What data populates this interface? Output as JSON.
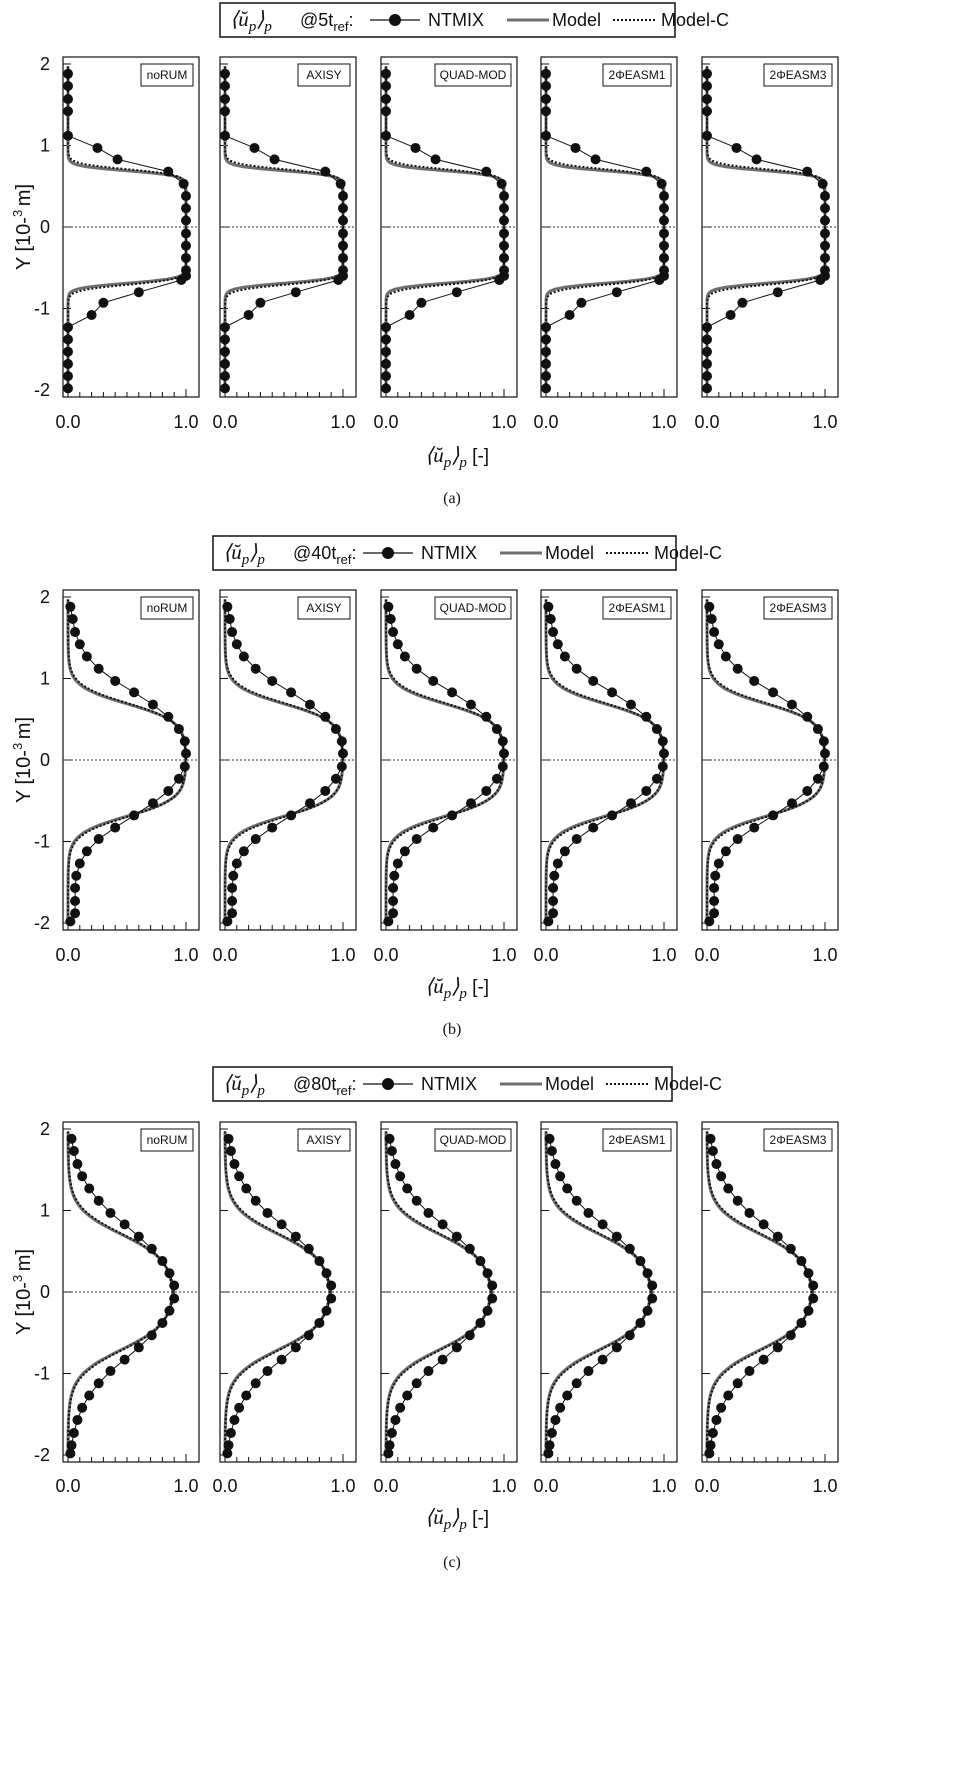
{
  "legend": {
    "quantity": "⟨ŭp⟩p",
    "times": [
      "5",
      "40",
      "80"
    ],
    "time_subscript": "ref",
    "entries": [
      "NTMIX",
      "Model",
      "Model-C"
    ]
  },
  "colors": {
    "ntmix": "#111111",
    "model": "#6e6e6e",
    "model_c": "#111111",
    "frame": "#111111"
  },
  "chart_data": [
    {
      "type": "line",
      "caption": "(a)",
      "time": "5",
      "panels": [
        "noRUM",
        "AXISY",
        "QUAD-MOD",
        "2ΦEASM1",
        "2ΦEASM3"
      ],
      "xlabel": "⟨ŭp⟩p [-]",
      "ylabel": "Y [10-3 m]",
      "xlim": [
        0,
        1
      ],
      "ylim": [
        -2,
        2
      ],
      "xticklabels": [
        "0.0",
        "1.0"
      ],
      "yticks": [
        2,
        1,
        0,
        -1,
        -2
      ],
      "reference_line_y": 0,
      "series": [
        {
          "name": "NTMIX",
          "marker": "circle",
          "x": [
            0,
            0,
            0,
            0,
            0,
            0.25,
            0.42,
            0.85,
            0.98,
            1.0,
            1.0,
            1.0,
            1.0,
            1.0,
            1.0,
            1.0,
            1.0,
            0.96,
            0.6,
            0.3,
            0.2,
            0,
            0,
            0,
            0,
            0,
            0
          ],
          "y": [
            1.88,
            1.73,
            1.57,
            1.42,
            1.12,
            0.97,
            0.83,
            0.68,
            0.53,
            0.38,
            0.23,
            0.08,
            -0.08,
            -0.23,
            -0.38,
            -0.53,
            -0.6,
            -0.65,
            -0.8,
            -0.93,
            -1.08,
            -1.23,
            -1.38,
            -1.53,
            -1.68,
            -1.83,
            -1.98
          ]
        },
        {
          "name": "Model",
          "profile": {
            "plateau": 1,
            "half_width": 0.7,
            "edge_width": 0.06
          }
        },
        {
          "name": "Model-C",
          "profile": {
            "plateau": 1,
            "half_width": 0.72,
            "edge_width": 0.07
          }
        }
      ]
    },
    {
      "type": "line",
      "caption": "(b)",
      "time": "40",
      "panels": [
        "noRUM",
        "AXISY",
        "QUAD-MOD",
        "2ΦEASM1",
        "2ΦEASM3"
      ],
      "xlabel": "⟨ŭp⟩p [-]",
      "ylabel": "Y [10-3 m]",
      "xlim": [
        0,
        1
      ],
      "ylim": [
        -2,
        2
      ],
      "xticklabels": [
        "0.0",
        "1.0"
      ],
      "yticks": [
        2,
        1,
        0,
        -1,
        -2
      ],
      "reference_line_y": 0,
      "series": [
        {
          "name": "NTMIX",
          "marker": "circle",
          "x": [
            0.02,
            0.04,
            0.06,
            0.1,
            0.16,
            0.26,
            0.4,
            0.56,
            0.72,
            0.85,
            0.94,
            0.99,
            1.0,
            0.99,
            0.94,
            0.85,
            0.72,
            0.56,
            0.4,
            0.26,
            0.16,
            0.1,
            0.07,
            0.06,
            0.06,
            0.06,
            0.02
          ],
          "y": [
            1.88,
            1.73,
            1.57,
            1.42,
            1.27,
            1.12,
            0.97,
            0.83,
            0.68,
            0.53,
            0.38,
            0.23,
            0.08,
            -0.08,
            -0.23,
            -0.38,
            -0.53,
            -0.68,
            -0.83,
            -0.97,
            -1.12,
            -1.27,
            -1.42,
            -1.57,
            -1.73,
            -1.88,
            -1.98
          ]
        },
        {
          "name": "Model",
          "profile": {
            "plateau": 1,
            "half_width": 0.7,
            "edge_width": 0.22
          }
        },
        {
          "name": "Model-C",
          "profile": {
            "plateau": 1,
            "half_width": 0.71,
            "edge_width": 0.23
          }
        }
      ]
    },
    {
      "type": "line",
      "caption": "(c)",
      "time": "80",
      "panels": [
        "noRUM",
        "AXISY",
        "QUAD-MOD",
        "2ΦEASM1",
        "2ΦEASM3"
      ],
      "xlabel": "⟨ŭp⟩p [-]",
      "ylabel": "Y [10-3 m]",
      "xlim": [
        0,
        1
      ],
      "ylim": [
        -2,
        2
      ],
      "xticklabels": [
        "0.0",
        "1.0"
      ],
      "yticks": [
        2,
        1,
        0,
        -1,
        -2
      ],
      "reference_line_y": 0,
      "series": [
        {
          "name": "NTMIX",
          "marker": "circle",
          "x": [
            0.03,
            0.05,
            0.08,
            0.12,
            0.18,
            0.26,
            0.36,
            0.48,
            0.6,
            0.71,
            0.8,
            0.86,
            0.9,
            0.9,
            0.86,
            0.8,
            0.71,
            0.6,
            0.48,
            0.36,
            0.26,
            0.18,
            0.12,
            0.08,
            0.05,
            0.03,
            0.02
          ],
          "y": [
            1.88,
            1.73,
            1.57,
            1.42,
            1.27,
            1.12,
            0.97,
            0.83,
            0.68,
            0.53,
            0.38,
            0.23,
            0.08,
            -0.08,
            -0.23,
            -0.38,
            -0.53,
            -0.68,
            -0.83,
            -0.97,
            -1.12,
            -1.27,
            -1.42,
            -1.57,
            -1.73,
            -1.88,
            -1.98
          ]
        },
        {
          "name": "Model",
          "profile": {
            "plateau": 0.9,
            "half_width": 0.72,
            "edge_width": 0.33
          }
        },
        {
          "name": "Model-C",
          "profile": {
            "plateau": 0.9,
            "half_width": 0.73,
            "edge_width": 0.34
          }
        }
      ]
    }
  ]
}
